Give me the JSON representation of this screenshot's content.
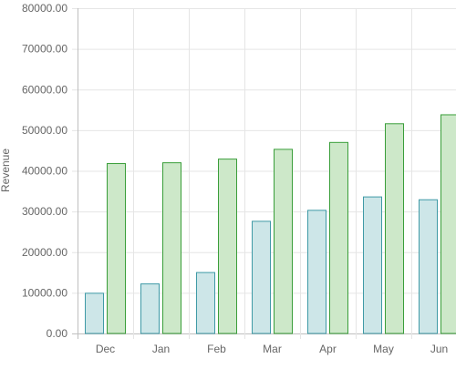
{
  "chart_data": {
    "type": "bar",
    "title": "",
    "xlabel": "",
    "ylabel": "Revenue",
    "categories": [
      "Dec",
      "Jan",
      "Feb",
      "Mar",
      "Apr",
      "May",
      "Jun"
    ],
    "ylim": [
      0,
      80000
    ],
    "yticks": [
      "0.00",
      "10000.00",
      "20000.00",
      "30000.00",
      "40000.00",
      "50000.00",
      "60000.00",
      "70000.00",
      "80000.00"
    ],
    "grid": true,
    "legend": "none",
    "series": [
      {
        "values": [
          10000,
          12300,
          15100,
          27700,
          30400,
          33700,
          33000
        ],
        "fill": "#cde6e8",
        "stroke": "#3f9aa6"
      },
      {
        "values": [
          41900,
          42100,
          43000,
          45400,
          47100,
          51700,
          53900
        ],
        "fill": "#cde8c9",
        "stroke": "#3a9e3a"
      }
    ]
  }
}
